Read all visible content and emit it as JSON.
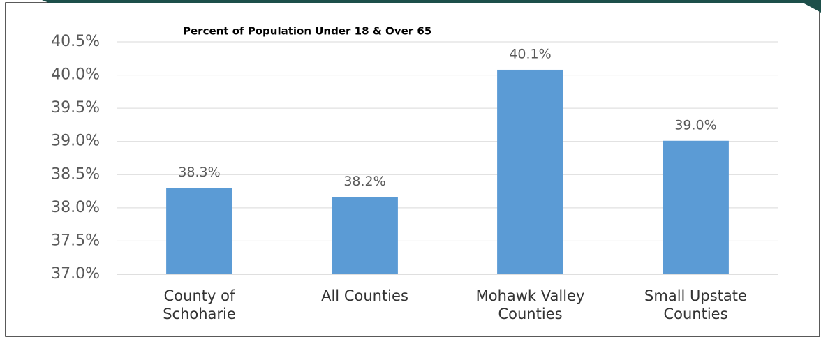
{
  "chart_data": {
    "type": "bar",
    "title": "Percent of Population Under 18 & Over 65",
    "categories": [
      "County of Schoharie",
      "All Counties",
      "Mohawk Valley Counties",
      "Small Upstate Counties"
    ],
    "values": [
      38.3,
      38.16,
      40.08,
      39.01
    ],
    "value_labels": [
      "38.3%",
      "38.2%",
      "40.1%",
      "39.0%"
    ],
    "color": "#5b9bd5",
    "ylim": [
      37.0,
      40.5
    ],
    "yticks": [
      {
        "value": 37.0,
        "label": "37.0%"
      },
      {
        "value": 37.5,
        "label": "37.5%"
      },
      {
        "value": 38.0,
        "label": "38.0%"
      },
      {
        "value": 38.5,
        "label": "38.5%"
      },
      {
        "value": 39.0,
        "label": "39.0%"
      },
      {
        "value": 39.5,
        "label": "39.5%"
      },
      {
        "value": 40.0,
        "label": "40.0%"
      },
      {
        "value": 40.5,
        "label": "40.5%"
      }
    ],
    "grid": true
  }
}
